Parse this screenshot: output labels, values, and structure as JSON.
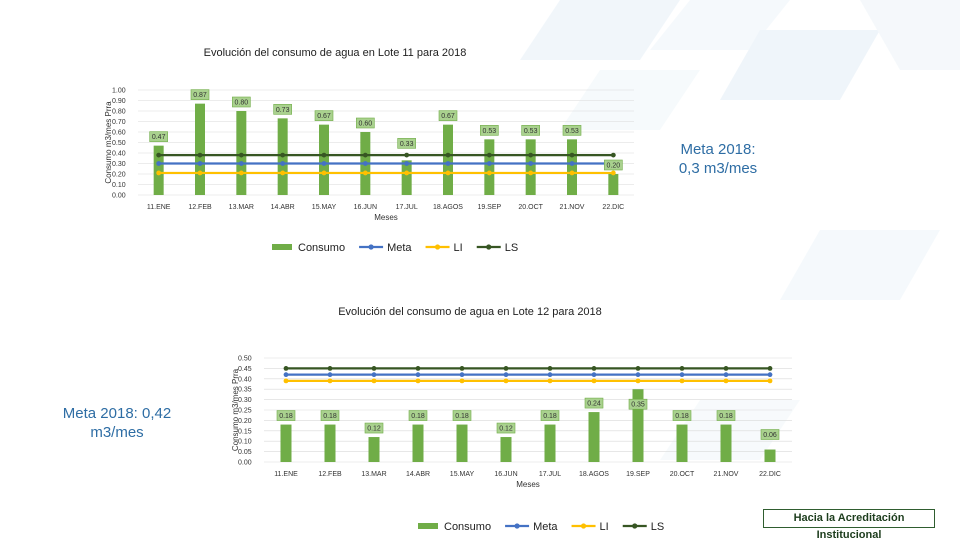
{
  "colors": {
    "consumo": "#70ad47",
    "consumo_border": "#548235",
    "meta": "#4472c4",
    "li": "#ffc000",
    "ls": "#375623",
    "label_bg": "#a9d18e",
    "label_border": "#70ad47"
  },
  "notes": {
    "meta_lote11": "Meta 2018: 0,3 m3/mes",
    "meta_lote12": "Meta 2018: 0,42 m3/mes"
  },
  "footer": {
    "badge": "Hacia la Acreditación Institucional"
  },
  "chart_data": [
    {
      "type": "bar",
      "title": "Evolución del consumo de agua en Lote 11 para 2018",
      "xlabel": "Meses",
      "ylabel": "Consumo m3/mes Prra",
      "ylim": [
        0,
        1.0
      ],
      "ytick_step": 0.1,
      "ytick_labels": [
        "0.00",
        "0.10",
        "0.20",
        "0.30",
        "0.40",
        "0.50",
        "0.60",
        "0.70",
        "0.80",
        "0.90",
        "1.00"
      ],
      "categories": [
        "11.ENE",
        "12.FEB",
        "13.MAR",
        "14.ABR",
        "15.MAY",
        "16.JUN",
        "17.JUL",
        "18.AGOS",
        "19.SEP",
        "20.OCT",
        "21.NOV",
        "22.DIC"
      ],
      "series": [
        {
          "name": "Consumo",
          "kind": "bar",
          "values": [
            0.47,
            0.87,
            0.8,
            0.73,
            0.67,
            0.6,
            0.33,
            0.67,
            0.53,
            0.53,
            0.53,
            0.2
          ],
          "labels": [
            "0.47",
            "0.87",
            "0.80",
            "0.73",
            "0.67",
            "0.60",
            "0.33",
            "0.67",
            "0.53",
            "0.53",
            "0.53",
            "0.20"
          ]
        },
        {
          "name": "Meta",
          "kind": "line",
          "values": [
            0.3,
            0.3,
            0.3,
            0.3,
            0.3,
            0.3,
            0.3,
            0.3,
            0.3,
            0.3,
            0.3,
            0.3
          ]
        },
        {
          "name": "LI",
          "kind": "line",
          "values": [
            0.21,
            0.21,
            0.21,
            0.21,
            0.21,
            0.21,
            0.21,
            0.21,
            0.21,
            0.21,
            0.21,
            0.21
          ]
        },
        {
          "name": "LS",
          "kind": "line",
          "values": [
            0.38,
            0.38,
            0.38,
            0.38,
            0.38,
            0.38,
            0.38,
            0.38,
            0.38,
            0.38,
            0.38,
            0.38
          ]
        }
      ],
      "legend": [
        "Consumo",
        "Meta",
        "LI",
        "LS"
      ],
      "legend_position": "bottom",
      "grid": true
    },
    {
      "type": "bar",
      "title": "Evolución del consumo de agua en Lote 12 para 2018",
      "xlabel": "Meses",
      "ylabel": "Consumo m3/mes Prra",
      "ylim": [
        0,
        0.5
      ],
      "ytick_step": 0.05,
      "ytick_labels": [
        "0.00",
        "0.05",
        "0.10",
        "0.15",
        "0.20",
        "0.25",
        "0.30",
        "0.35",
        "0.40",
        "0.45",
        "0.50"
      ],
      "categories": [
        "11.ENE",
        "12.FEB",
        "13.MAR",
        "14.ABR",
        "15.MAY",
        "16.JUN",
        "17.JUL",
        "18.AGOS",
        "19.SEP",
        "20.OCT",
        "21.NOV",
        "22.DIC"
      ],
      "series": [
        {
          "name": "Consumo",
          "kind": "bar",
          "values": [
            0.18,
            0.18,
            0.12,
            0.18,
            0.18,
            0.12,
            0.18,
            0.24,
            0.35,
            0.18,
            0.18,
            0.06
          ],
          "labels": [
            "0.18",
            "0.18",
            "0.12",
            "0.18",
            "0.18",
            "0.12",
            "0.18",
            "0.24",
            "0.35",
            "0.18",
            "0.18",
            "0.06"
          ]
        },
        {
          "name": "Meta",
          "kind": "line",
          "values": [
            0.42,
            0.42,
            0.42,
            0.42,
            0.42,
            0.42,
            0.42,
            0.42,
            0.42,
            0.42,
            0.42,
            0.42
          ]
        },
        {
          "name": "LI",
          "kind": "line",
          "values": [
            0.39,
            0.39,
            0.39,
            0.39,
            0.39,
            0.39,
            0.39,
            0.39,
            0.39,
            0.39,
            0.39,
            0.39
          ]
        },
        {
          "name": "LS",
          "kind": "line",
          "values": [
            0.45,
            0.45,
            0.45,
            0.45,
            0.45,
            0.45,
            0.45,
            0.45,
            0.45,
            0.45,
            0.45,
            0.45
          ]
        }
      ],
      "legend": [
        "Consumo",
        "Meta",
        "LI",
        "LS"
      ],
      "legend_position": "bottom",
      "grid": true
    }
  ]
}
